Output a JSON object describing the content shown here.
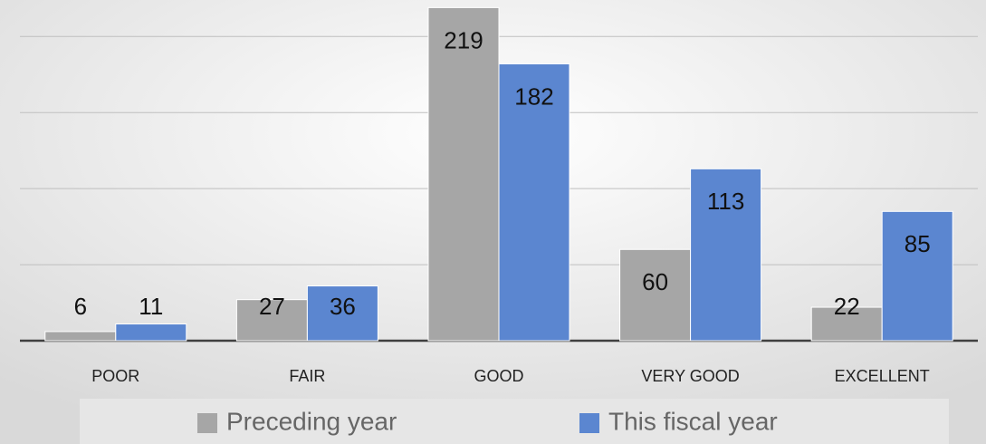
{
  "chart_data": {
    "type": "bar",
    "categories": [
      "POOR",
      "FAIR",
      "GOOD",
      "VERY GOOD",
      "EXCELLENT"
    ],
    "series": [
      {
        "name": "Preceding year",
        "color": "#a6a6a6",
        "values": [
          6,
          27,
          219,
          60,
          22
        ]
      },
      {
        "name": "This fiscal year",
        "color": "#5b86d0",
        "values": [
          11,
          36,
          182,
          113,
          85
        ]
      }
    ],
    "ylim": [
      0,
      224
    ],
    "yticks": [
      0,
      50,
      100,
      150,
      200
    ],
    "grid": true,
    "legend": "bottom"
  }
}
